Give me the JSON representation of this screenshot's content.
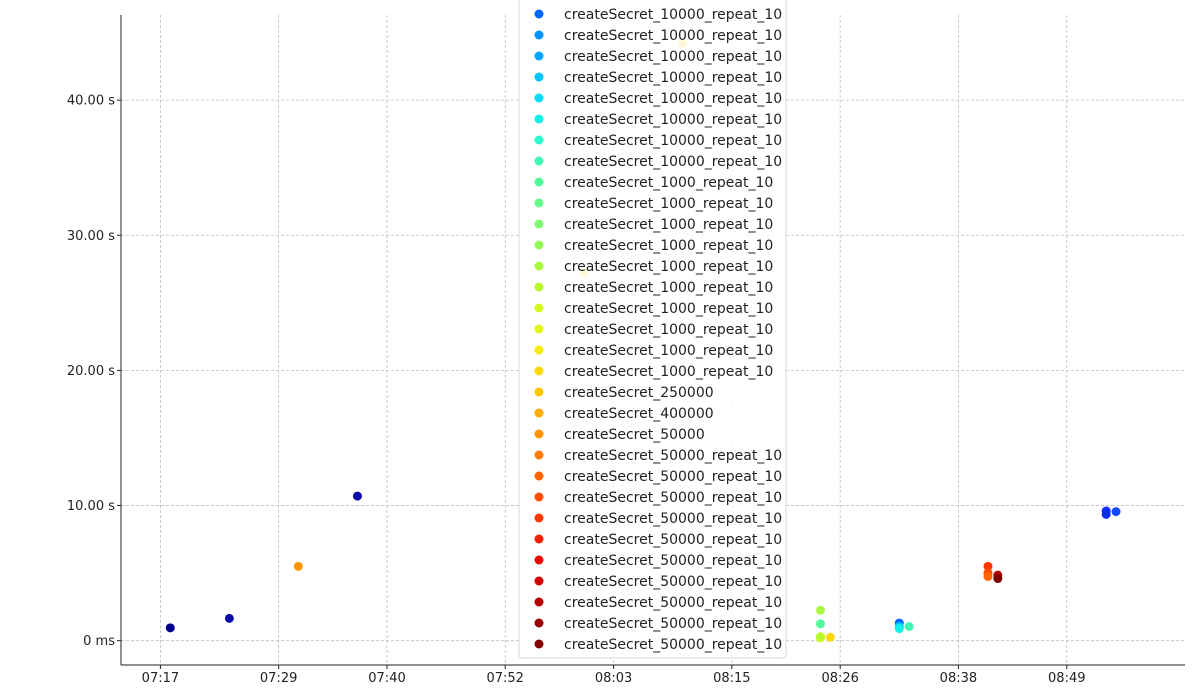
{
  "chart_data": {
    "type": "scatter",
    "title": "",
    "xlabel": "",
    "ylabel": "",
    "x_tick_labels": [
      "07:17",
      "07:29",
      "07:40",
      "07:52",
      "08:03",
      "08:15",
      "08:26",
      "08:38",
      "08:49"
    ],
    "y_tick_labels": [
      "0 ms",
      "10.00 s",
      "20.00 s",
      "30.00 s",
      "40.00 s"
    ],
    "y_tick_values_s": [
      0,
      10,
      20,
      30,
      40
    ],
    "ylim_s": [
      -1.8,
      46.3
    ],
    "xlim": [
      "07:13",
      "09:01"
    ],
    "grid": true,
    "legend_placement": "top-center",
    "legend": [
      {
        "name": "createSecret_10000_repeat_10",
        "color": "#0066ff"
      },
      {
        "name": "createSecret_10000_repeat_10",
        "color": "#0090ff"
      },
      {
        "name": "createSecret_10000_repeat_10",
        "color": "#00a8ff"
      },
      {
        "name": "createSecret_10000_repeat_10",
        "color": "#00c4ff"
      },
      {
        "name": "createSecret_10000_repeat_10",
        "color": "#00dcf8"
      },
      {
        "name": "createSecret_10000_repeat_10",
        "color": "#10f0e6"
      },
      {
        "name": "createSecret_10000_repeat_10",
        "color": "#2cf8cc"
      },
      {
        "name": "createSecret_10000_repeat_10",
        "color": "#40f8b4"
      },
      {
        "name": "createSecret_1000_repeat_10",
        "color": "#55f89c"
      },
      {
        "name": "createSecret_1000_repeat_10",
        "color": "#68f88a"
      },
      {
        "name": "createSecret_1000_repeat_10",
        "color": "#7ef870"
      },
      {
        "name": "createSecret_1000_repeat_10",
        "color": "#94f858"
      },
      {
        "name": "createSecret_1000_repeat_10",
        "color": "#a8f840"
      },
      {
        "name": "createSecret_1000_repeat_10",
        "color": "#bcf830"
      },
      {
        "name": "createSecret_1000_repeat_10",
        "color": "#d2f820"
      },
      {
        "name": "createSecret_1000_repeat_10",
        "color": "#e4f412"
      },
      {
        "name": "createSecret_1000_repeat_10",
        "color": "#f4ec08"
      },
      {
        "name": "createSecret_1000_repeat_10",
        "color": "#ffda00"
      },
      {
        "name": "createSecret_250000",
        "color": "#ffc400"
      },
      {
        "name": "createSecret_400000",
        "color": "#ffaa00"
      },
      {
        "name": "createSecret_50000",
        "color": "#ff9400"
      },
      {
        "name": "createSecret_50000_repeat_10",
        "color": "#ff7c00"
      },
      {
        "name": "createSecret_50000_repeat_10",
        "color": "#ff6400"
      },
      {
        "name": "createSecret_50000_repeat_10",
        "color": "#ff4e00"
      },
      {
        "name": "createSecret_50000_repeat_10",
        "color": "#ff3800"
      },
      {
        "name": "createSecret_50000_repeat_10",
        "color": "#f82000"
      },
      {
        "name": "createSecret_50000_repeat_10",
        "color": "#e80a00"
      },
      {
        "name": "createSecret_50000_repeat_10",
        "color": "#d00000"
      },
      {
        "name": "createSecret_50000_repeat_10",
        "color": "#b40000"
      },
      {
        "name": "createSecret_50000_repeat_10",
        "color": "#9a0000"
      },
      {
        "name": "createSecret_50000_repeat_10",
        "color": "#800000"
      }
    ],
    "points": [
      {
        "x": "07:18",
        "y": 0.95,
        "color": "#00008f"
      },
      {
        "x": "07:24",
        "y": 1.65,
        "color": "#0a0aa8"
      },
      {
        "x": "07:31",
        "y": 5.5,
        "color": "#ff9400"
      },
      {
        "x": "07:37",
        "y": 10.7,
        "color": "#0b0ba8"
      },
      {
        "x": "08:00",
        "y": 27.2,
        "color": "#ffda00"
      },
      {
        "x": "08:10",
        "y": 44.2,
        "color": "#ffc400"
      },
      {
        "x": "08:24",
        "y": 2.25,
        "color": "#a8f840"
      },
      {
        "x": "08:24",
        "y": 1.25,
        "color": "#55f89c"
      },
      {
        "x": "08:24",
        "y": 0.2,
        "color": "#d2f820"
      },
      {
        "x": "08:24",
        "y": 0.3,
        "color": "#bcf830"
      },
      {
        "x": "08:25",
        "y": 0.25,
        "color": "#ffda00"
      },
      {
        "x": "08:32",
        "y": 1.3,
        "color": "#0066ff"
      },
      {
        "x": "08:32",
        "y": 1.05,
        "color": "#00c4ff"
      },
      {
        "x": "08:32",
        "y": 0.9,
        "color": "#10f0e6"
      },
      {
        "x": "08:33",
        "y": 1.05,
        "color": "#40f8b4"
      },
      {
        "x": "08:41",
        "y": 5.5,
        "color": "#ff3800"
      },
      {
        "x": "08:41",
        "y": 5.0,
        "color": "#ff4e00"
      },
      {
        "x": "08:41",
        "y": 4.75,
        "color": "#ff6400"
      },
      {
        "x": "08:42",
        "y": 4.85,
        "color": "#b40000"
      },
      {
        "x": "08:42",
        "y": 4.6,
        "color": "#800000"
      },
      {
        "x": "08:53",
        "y": 9.6,
        "color": "#1a2eff"
      },
      {
        "x": "08:53",
        "y": 9.35,
        "color": "#0a30e8"
      },
      {
        "x": "08:54",
        "y": 9.55,
        "color": "#1448ff"
      }
    ]
  }
}
